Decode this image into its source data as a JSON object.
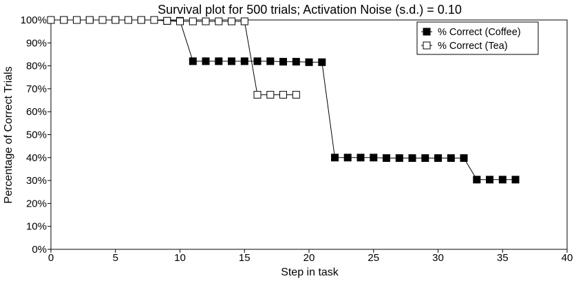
{
  "chart_data": {
    "type": "line",
    "title": "Survival plot for 500 trials; Activation Noise (s.d.) = 0.10",
    "xlabel": "Step in task",
    "ylabel": "Percentage of Correct Trials",
    "xlim": [
      0,
      40
    ],
    "ylim": [
      0,
      100
    ],
    "xticks": [
      0,
      5,
      10,
      15,
      20,
      25,
      30,
      35,
      40
    ],
    "yticks": [
      0,
      10,
      20,
      30,
      40,
      50,
      60,
      70,
      80,
      90,
      100
    ],
    "ytick_labels": [
      "0%",
      "10%",
      "20%",
      "30%",
      "40%",
      "50%",
      "60%",
      "70%",
      "80%",
      "90%",
      "100%"
    ],
    "grid": false,
    "legend_position": "top-right",
    "series": [
      {
        "name": "% Correct (Coffee)",
        "marker": "filled-square",
        "color": "#000000",
        "x": [
          0,
          1,
          2,
          3,
          4,
          5,
          6,
          7,
          8,
          9,
          10,
          11,
          12,
          13,
          14,
          15,
          16,
          17,
          18,
          19,
          20,
          21,
          22,
          23,
          24,
          25,
          26,
          27,
          28,
          29,
          30,
          31,
          32,
          33,
          34,
          35,
          36
        ],
        "y": [
          100,
          100,
          100,
          100,
          100,
          100,
          100,
          100,
          100,
          99.6,
          99.6,
          82,
          82,
          82,
          82,
          82,
          82,
          82,
          81.8,
          81.8,
          81.6,
          81.6,
          40,
          40,
          40,
          40,
          39.8,
          39.8,
          39.8,
          39.8,
          39.8,
          39.8,
          39.8,
          30.4,
          30.4,
          30.4,
          30.4
        ]
      },
      {
        "name": "% Correct (Tea)",
        "marker": "open-square",
        "color": "#000000",
        "x": [
          0,
          1,
          2,
          3,
          4,
          5,
          6,
          7,
          8,
          9,
          10,
          11,
          12,
          13,
          14,
          15,
          16,
          17,
          18,
          19
        ],
        "y": [
          100,
          100,
          100,
          100,
          100,
          100,
          100,
          100,
          100,
          99.6,
          99.4,
          99.4,
          99.4,
          99.4,
          99.4,
          99.4,
          67.4,
          67.4,
          67.4,
          67.4
        ]
      }
    ]
  }
}
